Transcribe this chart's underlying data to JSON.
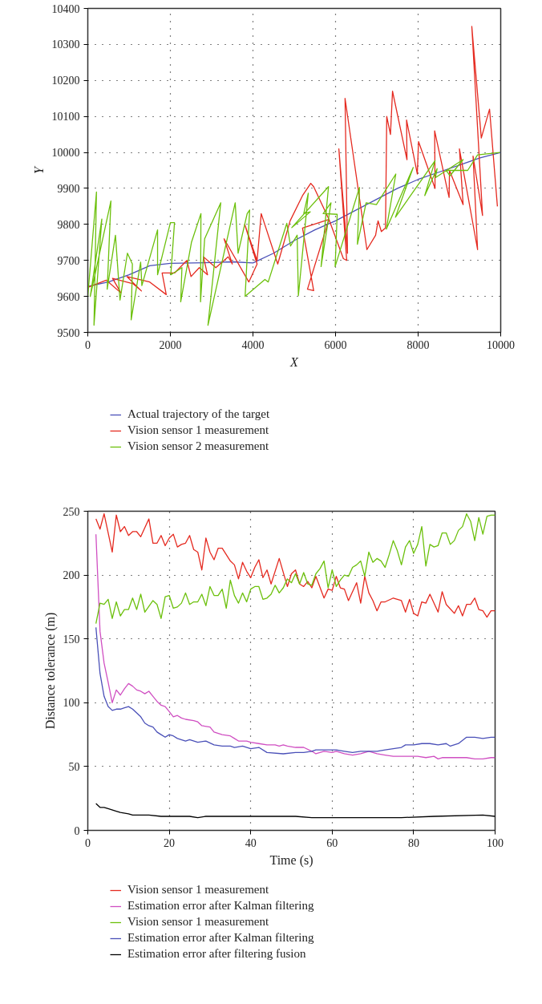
{
  "chart_data": [
    {
      "type": "line",
      "xlabel": "X",
      "ylabel": "Y",
      "xlim": [
        0,
        10000
      ],
      "ylim": [
        9500,
        10400
      ],
      "xticks": [
        0,
        2000,
        4000,
        6000,
        8000,
        10000
      ],
      "yticks": [
        9500,
        9600,
        9700,
        9800,
        9900,
        10000,
        10100,
        10200,
        10300,
        10400
      ],
      "grid": true,
      "legend": "bottom",
      "series": [
        {
          "name": "Actual trajectory of the target",
          "color": "#4a50b8",
          "x": [
            0,
            500,
            1000,
            1500,
            2000,
            3000,
            3500,
            4000,
            4500,
            5000,
            5500,
            6000,
            6500,
            7000,
            7500,
            8000,
            8500,
            9000,
            9500,
            10000
          ],
          "values": [
            9628,
            9640,
            9660,
            9685,
            9692,
            9694,
            9696,
            9693,
            9720,
            9755,
            9785,
            9810,
            9840,
            9870,
            9900,
            9925,
            9945,
            9965,
            9985,
            10000
          ]
        },
        {
          "name": "Vision sensor 1 measurement",
          "color": "#e52a20",
          "x": [
            0,
            450,
            800,
            600,
            1100,
            1300,
            950,
            1500,
            1900,
            1800,
            2100,
            2400,
            2500,
            2700,
            2900,
            2800,
            3100,
            3400,
            3500,
            3300,
            3900,
            4100,
            3800,
            4100,
            4200,
            4600,
            4900,
            5200,
            5400,
            5470,
            5840,
            5320,
            5470,
            5200,
            5840,
            6190,
            6270,
            6080,
            6290,
            6230,
            6760,
            6970,
            7030,
            7110,
            7210,
            7240,
            7330,
            7380,
            7730,
            7720,
            7980,
            8010,
            8410,
            8400,
            8700,
            8750,
            8760,
            9090,
            9000,
            9440,
            9330,
            9560,
            9300,
            9530,
            9730,
            9920
          ],
          "values": [
            9625,
            9645,
            9610,
            9650,
            9635,
            9615,
            9655,
            9640,
            9605,
            9665,
            9665,
            9700,
            9655,
            9680,
            9660,
            9710,
            9680,
            9710,
            9690,
            9760,
            9640,
            9690,
            9800,
            9700,
            9830,
            9690,
            9810,
            9880,
            9914,
            9905,
            9814,
            9620,
            9616,
            9790,
            9814,
            9705,
            9700,
            10010,
            9720,
            10150,
            9730,
            9770,
            9810,
            9780,
            9790,
            10100,
            10050,
            10170,
            9980,
            10090,
            9940,
            10030,
            9900,
            10060,
            9900,
            9875,
            9950,
            9855,
            10010,
            9730,
            9990,
            9825,
            10350,
            10040,
            10120,
            9850
          ]
        },
        {
          "name": "Vision sensor 2 measurement",
          "color": "#6cc00c",
          "x": [
            0,
            210,
            150,
            340,
            60,
            560,
            470,
            670,
            780,
            960,
            1080,
            1050,
            1280,
            1310,
            1690,
            1690,
            2000,
            2100,
            2010,
            2280,
            2250,
            2510,
            2740,
            2730,
            2830,
            3220,
            2910,
            3570,
            3640,
            3860,
            3920,
            3810,
            4290,
            4370,
            4820,
            4910,
            5070,
            5100,
            5340,
            5230,
            5390,
            4940,
            5830,
            5650,
            5890,
            5700,
            6040,
            5990,
            6580,
            6530,
            6740,
            6990,
            7460,
            7230,
            7880,
            7450,
            8410,
            8160,
            8460,
            8420,
            9090,
            8770,
            8680,
            9200,
            9440,
            9980
          ],
          "values": [
            9600,
            9890,
            9520,
            9815,
            9600,
            9865,
            9620,
            9770,
            9590,
            9720,
            9690,
            9535,
            9695,
            9630,
            9785,
            9660,
            9805,
            9805,
            9660,
            9680,
            9585,
            9750,
            9830,
            9585,
            9760,
            9860,
            9520,
            9860,
            9720,
            9830,
            9840,
            9600,
            9647,
            9640,
            9803,
            9740,
            9770,
            9602,
            9887,
            9830,
            9835,
            9791,
            9905,
            9683,
            9860,
            9830,
            9828,
            9683,
            9903,
            9745,
            9860,
            9855,
            9940,
            9787,
            9958,
            9820,
            9977,
            9880,
            9955,
            9930,
            9980,
            9935,
            9950,
            9950,
            9993,
            10000
          ]
        }
      ]
    },
    {
      "type": "line",
      "xlabel": "Time (s)",
      "ylabel": "Distance tolerance (m)",
      "xlim": [
        0,
        100
      ],
      "ylim": [
        0,
        250
      ],
      "xticks": [
        0,
        20,
        40,
        60,
        80,
        100
      ],
      "yticks": [
        0,
        50,
        100,
        150,
        200,
        250
      ],
      "grid": true,
      "legend": "bottom",
      "series": [
        {
          "name": "Vision sensor 1 measurement",
          "color": "#e52a20",
          "x": [
            2,
            3,
            4,
            6,
            7,
            8,
            9,
            10,
            11,
            12,
            13,
            15,
            16,
            17,
            18,
            19,
            20,
            21,
            22,
            23,
            24,
            25,
            26,
            27,
            28,
            29,
            30,
            31,
            32,
            33,
            35,
            36,
            37,
            38,
            39,
            40,
            41,
            42,
            43,
            44,
            45,
            47,
            48,
            49,
            50,
            51,
            52,
            53,
            54,
            55,
            56,
            58,
            59,
            60,
            61,
            62,
            63,
            64,
            66,
            67,
            68,
            69,
            70,
            71,
            72,
            73,
            75,
            77,
            78,
            79,
            80,
            81,
            82,
            83,
            84,
            86,
            87,
            88,
            90,
            91,
            92,
            93,
            94,
            95,
            96,
            97,
            98,
            99,
            100
          ],
          "values": [
            244,
            236,
            248,
            218,
            247,
            234,
            238,
            231,
            234,
            234,
            230,
            244,
            225,
            225,
            231,
            223,
            229,
            232,
            222,
            224,
            225,
            231,
            220,
            218,
            204,
            229,
            218,
            212,
            221,
            221,
            211,
            208,
            197,
            210,
            203,
            198,
            206,
            212,
            198,
            204,
            193,
            213,
            202,
            191,
            201,
            204,
            193,
            191,
            195,
            190,
            199,
            182,
            189,
            188,
            199,
            190,
            189,
            180,
            194,
            178,
            199,
            186,
            180,
            172,
            179,
            179,
            182,
            180,
            171,
            181,
            170,
            168,
            179,
            178,
            185,
            171,
            187,
            177,
            170,
            176,
            168,
            177,
            177,
            182,
            173,
            172,
            167,
            172,
            172
          ]
        },
        {
          "name": "Estimation error after Kalman filtering",
          "color": "#d04fc2",
          "x": [
            2,
            3,
            4,
            5,
            6,
            7,
            8,
            9,
            10,
            11,
            12,
            13,
            14,
            15,
            16,
            17,
            18,
            19,
            20,
            21,
            22,
            23,
            24,
            26,
            27,
            28,
            30,
            31,
            33,
            35,
            36,
            37,
            39,
            40,
            42,
            44,
            45,
            46,
            47,
            48,
            49,
            51,
            53,
            55,
            56,
            58,
            60,
            61,
            63,
            65,
            67,
            69,
            71,
            73,
            75,
            77,
            79,
            81,
            83,
            85,
            86,
            87,
            89,
            91,
            93,
            95,
            97,
            99,
            100
          ],
          "values": [
            232,
            156,
            131,
            116,
            100,
            110,
            106,
            111,
            115,
            113,
            110,
            109,
            107,
            109,
            105,
            101,
            98,
            97,
            93,
            89,
            90,
            88,
            87,
            86,
            85,
            82,
            81,
            77,
            75,
            74,
            72,
            70,
            70,
            69,
            68,
            67,
            67,
            67,
            66,
            67,
            66,
            65,
            65,
            62,
            60,
            62,
            61,
            62,
            60,
            59,
            60,
            62,
            60,
            59,
            58,
            58,
            58,
            58,
            57,
            58,
            56,
            57,
            57,
            57,
            57,
            56,
            56,
            57,
            57
          ]
        },
        {
          "name": "Vision sensor 1 measurement",
          "color": "#6cc00c",
          "x": [
            2,
            3,
            4,
            5,
            6,
            7,
            8,
            9,
            10,
            11,
            12,
            13,
            14,
            16,
            17,
            18,
            19,
            20,
            21,
            22,
            23,
            24,
            25,
            26,
            27,
            28,
            29,
            30,
            31,
            32,
            33,
            34,
            35,
            36,
            37,
            38,
            39,
            40,
            41,
            42,
            43,
            44,
            45,
            46,
            47,
            48,
            49,
            50,
            51,
            52,
            53,
            54,
            55,
            56,
            57,
            58,
            59,
            60,
            61,
            62,
            63,
            64,
            65,
            66,
            67,
            68,
            69,
            70,
            71,
            72,
            73,
            74,
            75,
            76,
            77,
            78,
            79,
            80,
            81,
            82,
            83,
            84,
            85,
            86,
            87,
            88,
            89,
            90,
            91,
            92,
            93,
            94,
            95,
            96,
            97,
            98,
            99,
            100
          ],
          "values": [
            162,
            178,
            177,
            181,
            166,
            179,
            168,
            173,
            173,
            182,
            173,
            185,
            171,
            180,
            177,
            166,
            183,
            184,
            174,
            175,
            178,
            186,
            177,
            179,
            179,
            185,
            176,
            191,
            184,
            184,
            189,
            174,
            196,
            184,
            178,
            186,
            179,
            189,
            191,
            191,
            181,
            182,
            185,
            192,
            186,
            190,
            197,
            194,
            201,
            193,
            202,
            193,
            192,
            201,
            205,
            211,
            190,
            204,
            191,
            196,
            200,
            199,
            206,
            208,
            211,
            199,
            218,
            210,
            213,
            211,
            206,
            216,
            227,
            219,
            208,
            222,
            227,
            217,
            224,
            238,
            207,
            224,
            222,
            223,
            233,
            233,
            224,
            227,
            235,
            238,
            248,
            242,
            227,
            245,
            232,
            246,
            247,
            247
          ]
        },
        {
          "name": "Estimation error after Kalman filtering",
          "color": "#4a50b8",
          "x": [
            2,
            3,
            4,
            5,
            6,
            7,
            8,
            9,
            10,
            11,
            12,
            13,
            14,
            15,
            16,
            17,
            18,
            19,
            20,
            21,
            22,
            24,
            25,
            27,
            29,
            31,
            33,
            35,
            36,
            38,
            40,
            42,
            44,
            48,
            51,
            53,
            55,
            56,
            58,
            60,
            61,
            63,
            65,
            67,
            69,
            71,
            73,
            75,
            77,
            78,
            80,
            82,
            84,
            86,
            88,
            89,
            91,
            93,
            95,
            97,
            99,
            100
          ],
          "values": [
            159,
            123,
            105,
            97,
            94,
            95,
            95,
            96,
            97,
            95,
            92,
            89,
            84,
            82,
            81,
            77,
            75,
            73,
            75,
            74,
            72,
            70,
            71,
            69,
            70,
            67,
            66,
            66,
            65,
            66,
            64,
            65,
            61,
            60,
            61,
            61,
            62,
            63,
            63,
            63,
            63,
            62,
            61,
            62,
            62,
            62,
            63,
            64,
            65,
            67,
            67,
            68,
            68,
            67,
            68,
            66,
            68,
            73,
            73,
            72,
            73,
            73
          ]
        },
        {
          "name": "Estimation error after filtering fusion",
          "color": "#000000",
          "x": [
            2,
            3,
            4,
            5,
            7,
            8,
            10,
            11,
            15,
            18,
            21,
            25,
            27,
            29,
            36,
            40,
            51,
            55,
            60,
            64,
            77,
            85,
            97,
            100
          ],
          "values": [
            21,
            18,
            18,
            17,
            15,
            14,
            13,
            12,
            12,
            11,
            11,
            11,
            10,
            11,
            11,
            11,
            11,
            10,
            10,
            10,
            10,
            11,
            12,
            11
          ]
        }
      ]
    }
  ]
}
